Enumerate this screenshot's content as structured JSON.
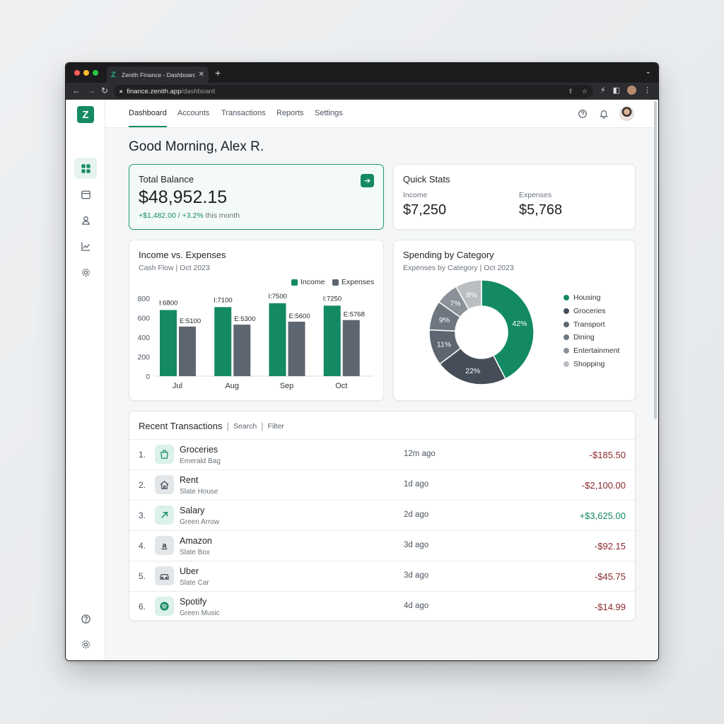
{
  "browser": {
    "tab_title": "Zenith Finance - Dashboard",
    "favicon": "Z",
    "url_host": "finance.zenith.app",
    "url_path": "/dashboard"
  },
  "app": {
    "logo_letter": "Z",
    "nav": [
      "Dashboard",
      "Accounts",
      "Transactions",
      "Reports",
      "Settings"
    ],
    "greeting": "Good Morning, Alex R."
  },
  "balance": {
    "title": "Total Balance",
    "amount": "$48,952.15",
    "delta_value": "+$1,482.00 / +3.2%",
    "delta_suffix": "this month"
  },
  "quick_stats": {
    "title": "Quick Stats",
    "income_label": "Income",
    "income_value": "$7,250",
    "expenses_label": "Expenses",
    "expenses_value": "$5,768"
  },
  "income_chart": {
    "title": "Income vs. Expenses",
    "subtitle": "Cash Flow | Oct 2023",
    "legend_income": "Income",
    "legend_expenses": "Expenses"
  },
  "spending_chart": {
    "title": "Spending by Category",
    "subtitle": "Expenses by Category | Oct 2023"
  },
  "chart_data": [
    {
      "type": "bar",
      "title": "Income vs. Expenses",
      "subtitle": "Cash Flow | Oct 2023",
      "categories": [
        "Jul",
        "Aug",
        "Sep",
        "Oct"
      ],
      "series": [
        {
          "name": "Income",
          "values": [
            6800,
            7100,
            7500,
            7250
          ],
          "labels": [
            "I:6800",
            "I:7100",
            "I:7500",
            "I:7250"
          ],
          "color": "#138a63"
        },
        {
          "name": "Expenses",
          "values": [
            5100,
            5300,
            5600,
            5768
          ],
          "labels": [
            "E:5100",
            "E:5300",
            "E:5600",
            "E:5768"
          ],
          "color": "#5d6670"
        }
      ],
      "y_ticks": [
        "800",
        "600",
        "400",
        "200",
        "0"
      ],
      "legend": "top-right",
      "grid": false
    },
    {
      "type": "pie",
      "style": "donut",
      "title": "Spending by Category",
      "subtitle": "Expenses by Category | Oct 2023",
      "slices": [
        {
          "name": "Housing",
          "value": 42,
          "label": "42%",
          "color": "#138a63"
        },
        {
          "name": "Groceries",
          "value": 22,
          "label": "22%",
          "color": "#454e58"
        },
        {
          "name": "Transport",
          "value": 11,
          "label": "11%",
          "color": "#5d6670"
        },
        {
          "name": "Dining",
          "value": 9,
          "label": "9%",
          "color": "#6e7780"
        },
        {
          "name": "Entertainment",
          "value": 7,
          "label": "7%",
          "color": "#8b9299"
        },
        {
          "name": "Shopping",
          "value": 8,
          "label": "8%",
          "color": "#b9bec3"
        }
      ],
      "legend": "right"
    }
  ],
  "transactions": {
    "title": "Recent Transactions",
    "search_label": "Search",
    "filter_label": "Filter",
    "rows": [
      {
        "index": "1.",
        "name": "Groceries",
        "merchant": "Emerald Bag",
        "time": "12m ago",
        "amount": "-$185.50",
        "sign": "neg",
        "icon": "shopping-bag-icon"
      },
      {
        "index": "2.",
        "name": "Rent",
        "merchant": "Slate House",
        "time": "1d ago",
        "amount": "-$2,100.00",
        "sign": "neg",
        "icon": "house-icon"
      },
      {
        "index": "3.",
        "name": "Salary",
        "merchant": "Green Arrow",
        "time": "2d ago",
        "amount": "+$3,625.00",
        "sign": "pos",
        "icon": "arrow-up-right-icon"
      },
      {
        "index": "4.",
        "name": "Amazon",
        "merchant": "Slate Box",
        "time": "3d ago",
        "amount": "-$92.15",
        "sign": "neg",
        "icon": "amazon-icon"
      },
      {
        "index": "5.",
        "name": "Uber",
        "merchant": "Slate Car",
        "time": "3d ago",
        "amount": "-$45.75",
        "sign": "neg",
        "icon": "car-icon"
      },
      {
        "index": "6.",
        "name": "Spotify",
        "merchant": "Green Music",
        "time": "4d ago",
        "amount": "-$14.99",
        "sign": "neg",
        "icon": "music-icon"
      }
    ]
  },
  "colors": {
    "accent": "#138a63",
    "slate": "#5d6670",
    "negative": "#8a2a2e"
  }
}
